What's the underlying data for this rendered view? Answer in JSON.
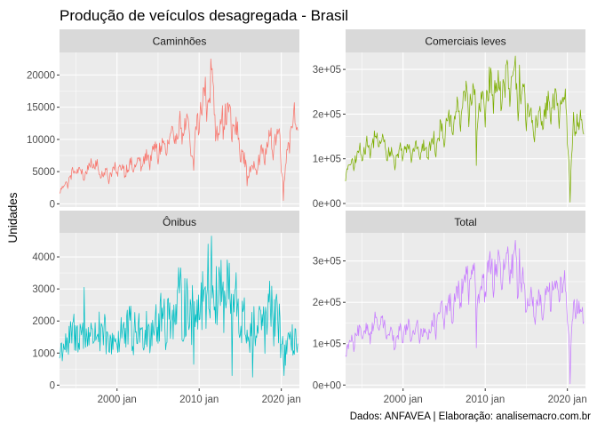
{
  "chart_data": {
    "type": "line",
    "title": "Produção de veículos desagregada - Brasil",
    "ylabel": "Unidades",
    "xlabel": "",
    "caption": "Dados: ANFAVEA | Elaboração: analisemacro.com.br",
    "x_ticks": [
      "2000 jan",
      "2010 jan",
      "2020 jan"
    ],
    "x_range": [
      1993,
      2022.2
    ],
    "panels": [
      {
        "name": "Caminhões",
        "color": "#F8766D",
        "ylim": [
          -500,
          23500
        ],
        "y_ticks": [
          0,
          5000,
          10000,
          15000,
          20000
        ],
        "y_tick_labels": [
          "0",
          "5000",
          "10000",
          "15000",
          "20000"
        ],
        "anchors": [
          [
            1993.0,
            2000
          ],
          [
            1994.0,
            3500
          ],
          [
            1995.0,
            5500
          ],
          [
            1996.0,
            4500
          ],
          [
            1997.0,
            6500
          ],
          [
            1998.0,
            5000
          ],
          [
            1999.0,
            4500
          ],
          [
            2000.0,
            5500
          ],
          [
            2001.0,
            5500
          ],
          [
            2002.0,
            6000
          ],
          [
            2003.0,
            6500
          ],
          [
            2004.0,
            7500
          ],
          [
            2005.0,
            8500
          ],
          [
            2006.0,
            9000
          ],
          [
            2007.0,
            10500
          ],
          [
            2008.0,
            12500
          ],
          [
            2008.8,
            11000
          ],
          [
            2009.2,
            6500
          ],
          [
            2009.8,
            13000
          ],
          [
            2010.5,
            16000
          ],
          [
            2011.3,
            18000
          ],
          [
            2011.8,
            15500
          ],
          [
            2012.3,
            11000
          ],
          [
            2012.8,
            13500
          ],
          [
            2013.5,
            14000
          ],
          [
            2014.3,
            12000
          ],
          [
            2015.0,
            9000
          ],
          [
            2015.6,
            6000
          ],
          [
            2016.3,
            5000
          ],
          [
            2017.0,
            6500
          ],
          [
            2017.6,
            7500
          ],
          [
            2018.3,
            9000
          ],
          [
            2019.0,
            10000
          ],
          [
            2019.8,
            10500
          ],
          [
            2020.3,
            2500
          ],
          [
            2020.9,
            11000
          ],
          [
            2021.5,
            13500
          ],
          [
            2022.0,
            13000
          ]
        ],
        "amp": 0.09,
        "spikes": [
          [
            2011.4,
            22500
          ],
          [
            2011.6,
            21000
          ],
          [
            2009.3,
            5200
          ],
          [
            2015.8,
            2800
          ],
          [
            2020.28,
            500
          ]
        ]
      },
      {
        "name": "Comerciais leves",
        "color": "#7CAE00",
        "ylim": [
          -8000,
          338000
        ],
        "y_ticks": [
          0,
          100000,
          200000,
          300000
        ],
        "y_tick_labels": [
          "0e+00",
          "1e+05",
          "2e+05",
          "3e+05"
        ],
        "anchors": [
          [
            1993.0,
            70000
          ],
          [
            1994.0,
            95000
          ],
          [
            1995.0,
            120000
          ],
          [
            1996.0,
            130000
          ],
          [
            1997.0,
            150000
          ],
          [
            1998.0,
            120000
          ],
          [
            1999.0,
            100000
          ],
          [
            2000.0,
            125000
          ],
          [
            2001.0,
            125000
          ],
          [
            2002.0,
            120000
          ],
          [
            2003.0,
            120000
          ],
          [
            2004.0,
            145000
          ],
          [
            2005.0,
            170000
          ],
          [
            2006.0,
            180000
          ],
          [
            2007.0,
            215000
          ],
          [
            2008.0,
            245000
          ],
          [
            2008.8,
            220000
          ],
          [
            2009.3,
            200000
          ],
          [
            2010.0,
            245000
          ],
          [
            2011.0,
            265000
          ],
          [
            2012.0,
            260000
          ],
          [
            2013.0,
            275000
          ],
          [
            2014.0,
            260000
          ],
          [
            2015.0,
            215000
          ],
          [
            2016.0,
            175000
          ],
          [
            2017.0,
            195000
          ],
          [
            2018.0,
            220000
          ],
          [
            2019.0,
            225000
          ],
          [
            2019.9,
            225000
          ],
          [
            2020.3,
            40000
          ],
          [
            2020.8,
            190000
          ],
          [
            2021.5,
            175000
          ],
          [
            2022.0,
            185000
          ]
        ],
        "amp": 0.07,
        "spikes": [
          [
            2013.7,
            330000
          ],
          [
            2014.2,
            310000
          ],
          [
            2008.9,
            85000
          ],
          [
            2020.33,
            3000
          ]
        ]
      },
      {
        "name": "Ônibus",
        "color": "#00BFC4",
        "ylim": [
          -100,
          4750
        ],
        "y_ticks": [
          0,
          1000,
          2000,
          3000,
          4000
        ],
        "y_tick_labels": [
          "0",
          "1000",
          "2000",
          "3000",
          "4000"
        ],
        "anchors": [
          [
            1993.0,
            1100
          ],
          [
            1994.0,
            1300
          ],
          [
            1995.0,
            1700
          ],
          [
            1996.0,
            1500
          ],
          [
            1997.0,
            1700
          ],
          [
            1998.0,
            1600
          ],
          [
            1999.0,
            1300
          ],
          [
            2000.0,
            1500
          ],
          [
            2001.0,
            1700
          ],
          [
            2002.0,
            1600
          ],
          [
            2003.0,
            1700
          ],
          [
            2004.0,
            1900
          ],
          [
            2005.0,
            2000
          ],
          [
            2006.0,
            2100
          ],
          [
            2007.0,
            2300
          ],
          [
            2008.0,
            2500
          ],
          [
            2009.0,
            2300
          ],
          [
            2010.0,
            2700
          ],
          [
            2011.0,
            3000
          ],
          [
            2012.0,
            3000
          ],
          [
            2013.0,
            2900
          ],
          [
            2014.0,
            2700
          ],
          [
            2015.0,
            2100
          ],
          [
            2016.0,
            1600
          ],
          [
            2017.0,
            1700
          ],
          [
            2018.0,
            2000
          ],
          [
            2019.0,
            2300
          ],
          [
            2020.0,
            1600
          ],
          [
            2020.5,
            900
          ],
          [
            2021.0,
            1400
          ],
          [
            2022.0,
            1400
          ]
        ],
        "amp": 0.26,
        "spikes": [
          [
            2011.5,
            4650
          ],
          [
            2011.1,
            4400
          ],
          [
            1996.0,
            3050
          ],
          [
            2009.3,
            650
          ],
          [
            2014.0,
            300
          ],
          [
            2016.5,
            250
          ],
          [
            2020.35,
            300
          ]
        ]
      },
      {
        "name": "Total",
        "color": "#C77CFF",
        "ylim": [
          -8000,
          368000
        ],
        "y_ticks": [
          0,
          100000,
          200000,
          300000
        ],
        "y_tick_labels": [
          "0e+00",
          "1e+05",
          "2e+05",
          "3e+05"
        ],
        "anchors": [
          [
            1993.0,
            85000
          ],
          [
            1994.0,
            110000
          ],
          [
            1995.0,
            130000
          ],
          [
            1996.0,
            135000
          ],
          [
            1997.0,
            160000
          ],
          [
            1998.0,
            130000
          ],
          [
            1999.0,
            105000
          ],
          [
            2000.0,
            135000
          ],
          [
            2001.0,
            135000
          ],
          [
            2002.0,
            130000
          ],
          [
            2003.0,
            130000
          ],
          [
            2004.0,
            155000
          ],
          [
            2005.0,
            180000
          ],
          [
            2006.0,
            190000
          ],
          [
            2007.0,
            230000
          ],
          [
            2008.0,
            265000
          ],
          [
            2008.8,
            245000
          ],
          [
            2009.3,
            215000
          ],
          [
            2010.0,
            265000
          ],
          [
            2011.0,
            285000
          ],
          [
            2012.0,
            275000
          ],
          [
            2013.0,
            295000
          ],
          [
            2014.0,
            270000
          ],
          [
            2015.0,
            225000
          ],
          [
            2016.0,
            185000
          ],
          [
            2017.0,
            205000
          ],
          [
            2018.0,
            230000
          ],
          [
            2019.0,
            240000
          ],
          [
            2019.9,
            235000
          ],
          [
            2020.3,
            50000
          ],
          [
            2020.8,
            200000
          ],
          [
            2021.5,
            180000
          ],
          [
            2022.0,
            190000
          ]
        ],
        "amp": 0.07,
        "spikes": [
          [
            2013.7,
            350000
          ],
          [
            2014.2,
            330000
          ],
          [
            2008.9,
            90000
          ],
          [
            2020.33,
            3000
          ]
        ]
      }
    ]
  }
}
